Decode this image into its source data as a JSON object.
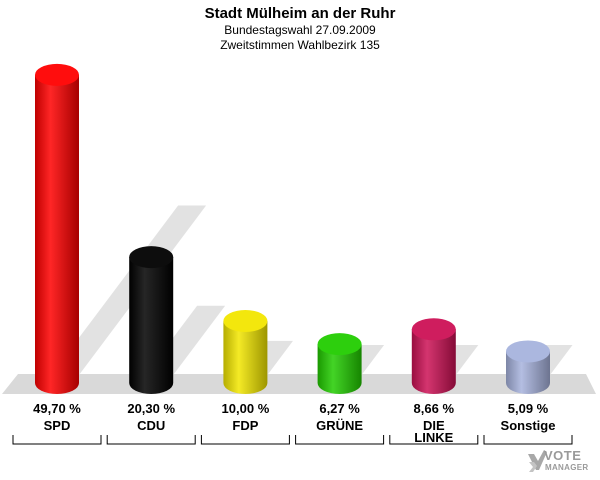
{
  "header": {
    "title": "Stadt Mülheim an der Ruhr",
    "subtitle1": "Bundestagswahl 27.09.2009",
    "subtitle2": "Zweitstimmen Wahlbezirk 135"
  },
  "logo": {
    "line1": "VOTE",
    "line2": "MANAGER",
    "icon": "checkmark-x-icon"
  },
  "chart_data": {
    "type": "bar",
    "title": "Stadt Mülheim an der Ruhr",
    "subtitle": "Bundestagswahl 27.09.2009 / Zweitstimmen Wahlbezirk 135",
    "categories": [
      "SPD",
      "CDU",
      "FDP",
      "GRÜNE",
      "DIE LINKE",
      "Sonstige"
    ],
    "category_lines": [
      [
        "SPD"
      ],
      [
        "CDU"
      ],
      [
        "FDP"
      ],
      [
        "GRÜNE"
      ],
      [
        "DIE",
        "LINKE"
      ],
      [
        "Sonstige"
      ]
    ],
    "values": [
      49.7,
      20.3,
      10.0,
      6.27,
      8.66,
      5.09
    ],
    "value_labels": [
      "49,70 %",
      "20,30 %",
      "10,00 %",
      "6,27 %",
      "8,66 %",
      "5,09 %"
    ],
    "colors": [
      "#ff0000",
      "#000000",
      "#f2e600",
      "#22cc00",
      "#cc1155",
      "#a7b3dd"
    ],
    "ylim": [
      0,
      50
    ],
    "grid": false,
    "legend": "none"
  }
}
